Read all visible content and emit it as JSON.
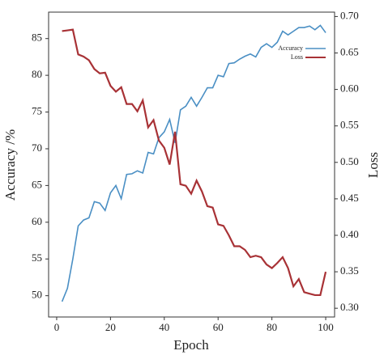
{
  "chart_data": {
    "type": "line",
    "xlabel": "Epoch",
    "ylabel": "Accuracy /%",
    "y2label": "Loss",
    "x": [
      2,
      4,
      6,
      8,
      10,
      12,
      14,
      16,
      18,
      20,
      22,
      24,
      26,
      28,
      30,
      32,
      34,
      36,
      38,
      40,
      42,
      44,
      46,
      48,
      50,
      52,
      54,
      56,
      58,
      60,
      62,
      64,
      66,
      68,
      70,
      72,
      74,
      76,
      78,
      80,
      82,
      84,
      86,
      88,
      90,
      92,
      94,
      96,
      98,
      100
    ],
    "series": [
      {
        "name": "Accuracy",
        "color": "#4a8fc4",
        "values": [
          49.2,
          51,
          55,
          59.5,
          60.3,
          60.6,
          62.8,
          62.6,
          61.6,
          64,
          65,
          63.2,
          66.5,
          66.6,
          67,
          66.7,
          69.5,
          69.3,
          71.5,
          72.3,
          74,
          70.8,
          75.3,
          75.8,
          77,
          75.8,
          77,
          78.3,
          78.3,
          80,
          79.8,
          81.6,
          81.7,
          82.2,
          82.6,
          82.9,
          82.5,
          83.8,
          84.3,
          83.8,
          84.5,
          86,
          85.5,
          86,
          86.5,
          86.5,
          86.7,
          86.2,
          86.8,
          85.8
        ]
      },
      {
        "name": "Loss",
        "color": "#a83236",
        "axis": "y2",
        "values": [
          0.68,
          0.681,
          0.682,
          0.648,
          0.645,
          0.64,
          0.628,
          0.622,
          0.623,
          0.605,
          0.597,
          0.603,
          0.58,
          0.58,
          0.57,
          0.585,
          0.548,
          0.558,
          0.53,
          0.52,
          0.497,
          0.542,
          0.47,
          0.468,
          0.457,
          0.475,
          0.46,
          0.44,
          0.438,
          0.415,
          0.413,
          0.4,
          0.385,
          0.385,
          0.38,
          0.37,
          0.372,
          0.37,
          0.36,
          0.355,
          0.362,
          0.37,
          0.355,
          0.33,
          0.34,
          0.322,
          0.32,
          0.318,
          0.318,
          0.35
        ]
      }
    ],
    "xlim": [
      -3,
      103.3
    ],
    "xticks": [
      0,
      20,
      40,
      60,
      80,
      100
    ],
    "ylim": [
      47.1,
      88.6
    ],
    "yticks": [
      50,
      55,
      60,
      65,
      70,
      75,
      80,
      85
    ],
    "y2lim": [
      0.288,
      0.706
    ],
    "y2ticks": [
      {
        "value": 0.3,
        "label": "0.30"
      },
      {
        "value": 0.35,
        "label": "0.35"
      },
      {
        "value": 0.4,
        "label": "0.40"
      },
      {
        "value": 0.45,
        "label": "0.45"
      },
      {
        "value": 0.5,
        "label": "0.50"
      },
      {
        "value": 0.55,
        "label": "0.55"
      },
      {
        "value": 0.6,
        "label": "0.60"
      },
      {
        "value": 0.65,
        "label": "0.65"
      },
      {
        "value": 0.7,
        "label": "0.70"
      }
    ],
    "legend": "upper right"
  }
}
